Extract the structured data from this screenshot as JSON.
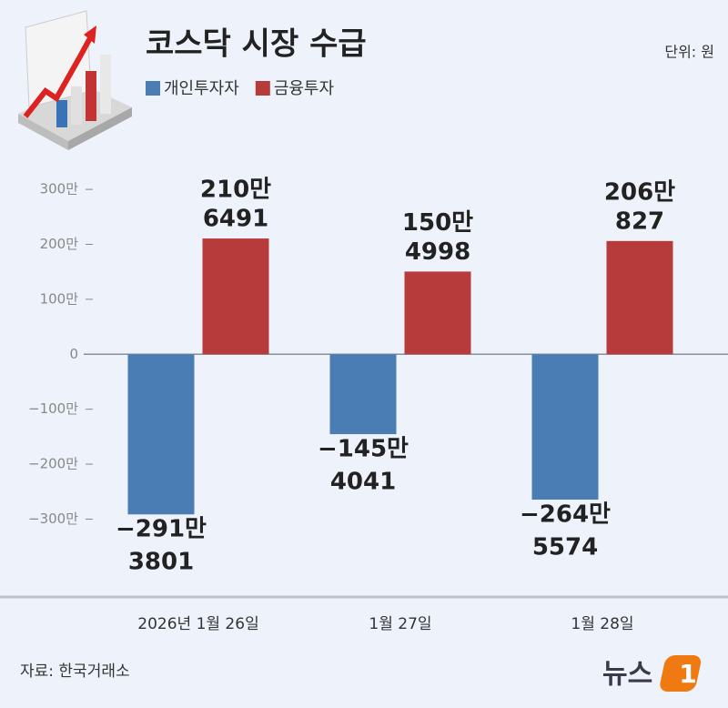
{
  "chart_data": {
    "type": "bar",
    "title": "코스닥 시장 수급",
    "unit": "단위: 원",
    "source": "자료: 한국거래소",
    "logo": {
      "text": "뉴스",
      "mark": "1"
    },
    "categories": [
      "2026년 1월 26일",
      "1월 27일",
      "1월 28일"
    ],
    "series": [
      {
        "name": "개인투자자",
        "color": "#4a7db3",
        "values": [
          -2913801,
          -1454041,
          -2645574
        ],
        "value_labels": [
          [
            "−291만",
            "3801"
          ],
          [
            "−145만",
            "4041"
          ],
          [
            "−264만",
            "5574"
          ]
        ]
      },
      {
        "name": "금융투자",
        "color": "#b83b3b",
        "values": [
          2106491,
          1504998,
          2060827
        ],
        "value_labels": [
          [
            "210만",
            "6491"
          ],
          [
            "150만",
            "4998"
          ],
          [
            "206만",
            "827"
          ]
        ]
      }
    ],
    "ylim": [
      -4400000,
      3300000
    ],
    "yticks": [
      {
        "value": 3000000,
        "label": "300만"
      },
      {
        "value": 2000000,
        "label": "200만"
      },
      {
        "value": 1000000,
        "label": "100만"
      },
      0,
      {
        "value": -1000000,
        "label": "−100만"
      },
      {
        "value": -2000000,
        "label": "−200만"
      },
      {
        "value": -3000000,
        "label": "−300만"
      }
    ]
  }
}
